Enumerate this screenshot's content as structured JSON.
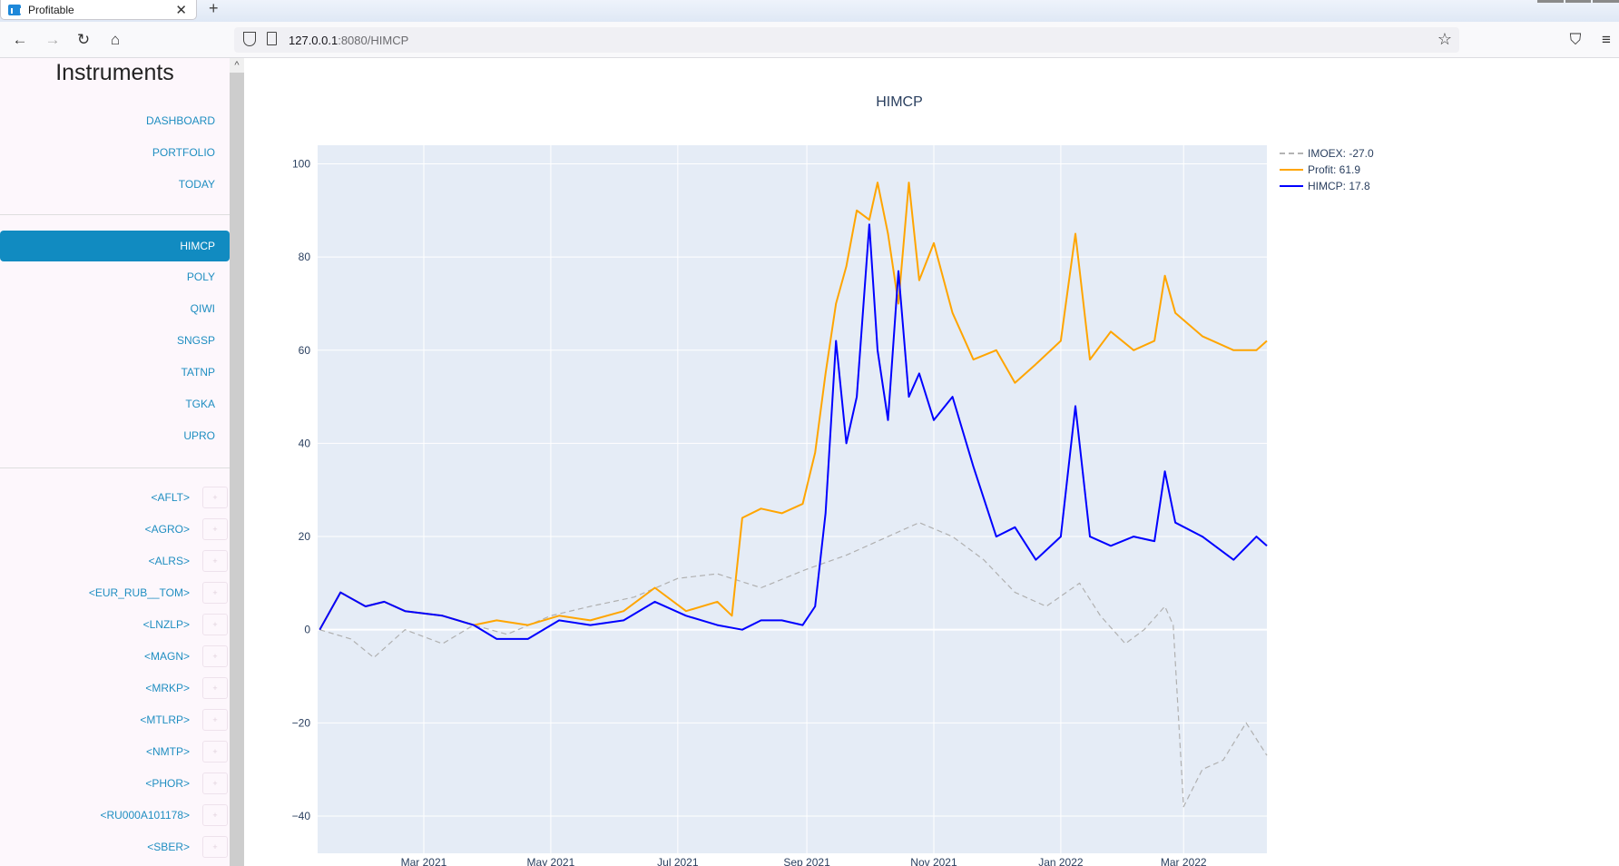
{
  "browser": {
    "tab_title": "Profitable",
    "tab_close": "✕",
    "new_tab": "+",
    "url_host": "127.0.0.1",
    "url_rest": ":8080/HIMCP",
    "back": "←",
    "forward": "→",
    "reload": "↻",
    "home": "⌂",
    "bookmark": "☆",
    "pocket": "⛉",
    "menu": "≡"
  },
  "sidebar": {
    "title": "Instruments",
    "top_links": [
      "DASHBOARD",
      "PORTFOLIO",
      "TODAY"
    ],
    "active": "HIMCP",
    "stocks": [
      "POLY",
      "QIWI",
      "SNGSP",
      "TATNP",
      "TGKA",
      "UPRO"
    ],
    "others": [
      "<AFLT>",
      "<AGRO>",
      "<ALRS>",
      "<EUR_RUB__TOM>",
      "<LNZLP>",
      "<MAGN>",
      "<MRKP>",
      "<MTLRP>",
      "<NMTP>",
      "<PHOR>",
      "<RU000A101178>",
      "<SBER>"
    ],
    "scroll_up": "^"
  },
  "chart_data": {
    "type": "line",
    "title": "HIMCP",
    "x_ticks": [
      "Mar 2021",
      "May 2021",
      "Jul 2021",
      "Sep 2021",
      "Nov 2021",
      "Jan 2022",
      "Mar 2022"
    ],
    "x_range": [
      "2021-01-09",
      "2022-04-10"
    ],
    "y_ticks": [
      100,
      80,
      60,
      40,
      20,
      0,
      -20,
      -40
    ],
    "ylim": [
      -48,
      104
    ],
    "legend_position": "top-right",
    "series": [
      {
        "name": "IMOEX",
        "legend": "IMOEX:  -27.0",
        "color": "#b0b0b0",
        "dash": true,
        "x": [
          "2021-01-10",
          "2021-01-25",
          "2021-02-05",
          "2021-02-20",
          "2021-03-10",
          "2021-03-25",
          "2021-04-10",
          "2021-05-01",
          "2021-05-20",
          "2021-06-10",
          "2021-07-01",
          "2021-07-20",
          "2021-08-10",
          "2021-09-01",
          "2021-09-20",
          "2021-10-10",
          "2021-10-25",
          "2021-11-10",
          "2021-11-25",
          "2021-12-10",
          "2021-12-25",
          "2022-01-10",
          "2022-01-20",
          "2022-02-01",
          "2022-02-10",
          "2022-02-20",
          "2022-02-24",
          "2022-03-01",
          "2022-03-10",
          "2022-03-20",
          "2022-03-31",
          "2022-04-10"
        ],
        "values": [
          0,
          -2,
          -6,
          0,
          -3,
          1,
          -1,
          3,
          5,
          7,
          11,
          12,
          9,
          13,
          16,
          20,
          23,
          20,
          15,
          8,
          5,
          10,
          3,
          -3,
          0,
          5,
          1,
          -38,
          -30,
          -28,
          -20,
          -27
        ]
      },
      {
        "name": "Profit",
        "legend": "Profit:   61.9",
        "color": "#ffa500",
        "dash": false,
        "x": [
          "2021-01-10",
          "2021-01-20",
          "2021-02-01",
          "2021-02-10",
          "2021-02-20",
          "2021-03-10",
          "2021-03-25",
          "2021-04-05",
          "2021-04-20",
          "2021-05-05",
          "2021-05-20",
          "2021-06-05",
          "2021-06-20",
          "2021-07-05",
          "2021-07-20",
          "2021-07-27",
          "2021-08-01",
          "2021-08-10",
          "2021-08-20",
          "2021-08-30",
          "2021-09-05",
          "2021-09-10",
          "2021-09-15",
          "2021-09-20",
          "2021-09-25",
          "2021-10-01",
          "2021-10-05",
          "2021-10-10",
          "2021-10-15",
          "2021-10-20",
          "2021-10-25",
          "2021-11-01",
          "2021-11-10",
          "2021-11-20",
          "2021-12-01",
          "2021-12-10",
          "2021-12-20",
          "2022-01-01",
          "2022-01-08",
          "2022-01-15",
          "2022-01-25",
          "2022-02-05",
          "2022-02-15",
          "2022-02-20",
          "2022-02-25",
          "2022-03-10",
          "2022-03-25",
          "2022-04-05",
          "2022-04-10"
        ],
        "values": [
          0,
          8,
          5,
          6,
          4,
          3,
          1,
          2,
          1,
          3,
          2,
          4,
          9,
          4,
          6,
          3,
          24,
          26,
          25,
          27,
          38,
          55,
          70,
          78,
          90,
          88,
          96,
          85,
          70,
          96,
          75,
          83,
          68,
          58,
          60,
          53,
          57,
          62,
          85,
          58,
          64,
          60,
          62,
          76,
          68,
          63,
          60,
          60,
          62
        ]
      },
      {
        "name": "HIMCP",
        "legend": "HIMCP:   17.8",
        "color": "#0000ff",
        "dash": false,
        "x": [
          "2021-01-10",
          "2021-01-20",
          "2021-02-01",
          "2021-02-10",
          "2021-02-20",
          "2021-03-10",
          "2021-03-25",
          "2021-04-05",
          "2021-04-20",
          "2021-05-05",
          "2021-05-20",
          "2021-06-05",
          "2021-06-20",
          "2021-07-05",
          "2021-07-20",
          "2021-08-01",
          "2021-08-10",
          "2021-08-20",
          "2021-08-30",
          "2021-09-05",
          "2021-09-10",
          "2021-09-15",
          "2021-09-20",
          "2021-09-25",
          "2021-10-01",
          "2021-10-05",
          "2021-10-10",
          "2021-10-15",
          "2021-10-20",
          "2021-10-25",
          "2021-11-01",
          "2021-11-10",
          "2021-11-20",
          "2021-12-01",
          "2021-12-10",
          "2021-12-20",
          "2022-01-01",
          "2022-01-08",
          "2022-01-15",
          "2022-01-25",
          "2022-02-05",
          "2022-02-15",
          "2022-02-20",
          "2022-02-25",
          "2022-03-10",
          "2022-03-25",
          "2022-04-05",
          "2022-04-10"
        ],
        "values": [
          0,
          8,
          5,
          6,
          4,
          3,
          1,
          -2,
          -2,
          2,
          1,
          2,
          6,
          3,
          1,
          0,
          2,
          2,
          1,
          5,
          25,
          62,
          40,
          50,
          87,
          60,
          45,
          77,
          50,
          55,
          45,
          50,
          35,
          20,
          22,
          15,
          20,
          48,
          20,
          18,
          20,
          19,
          34,
          23,
          20,
          15,
          20,
          18
        ]
      }
    ]
  }
}
